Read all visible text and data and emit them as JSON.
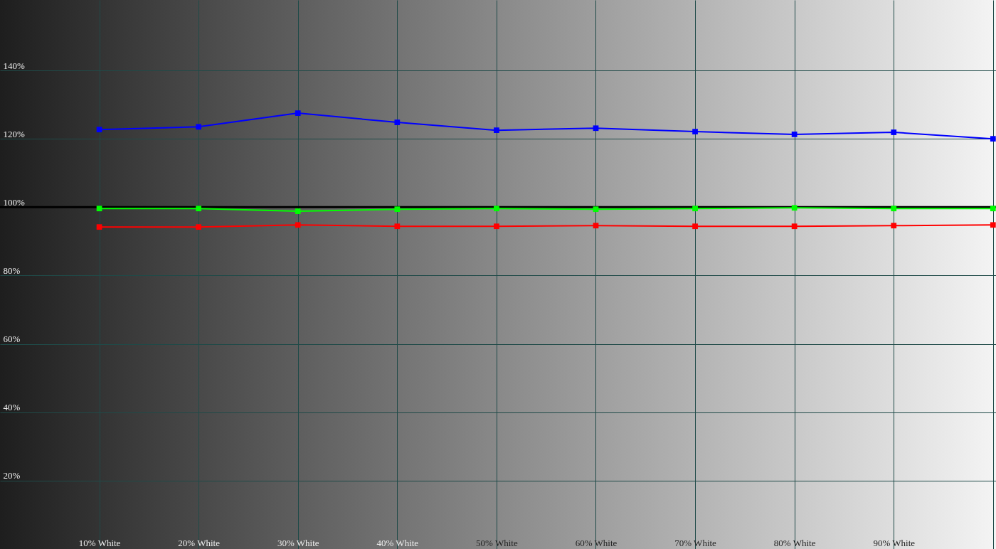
{
  "chart_data": {
    "type": "line",
    "x": [
      10,
      20,
      30,
      40,
      50,
      60,
      70,
      80,
      90,
      100
    ],
    "series": [
      {
        "color": "#0000ff",
        "values": [
          122.7,
          123.5,
          127.5,
          124.8,
          122.5,
          123.1,
          122.1,
          121.3,
          121.9,
          120.0
        ]
      },
      {
        "color": "#00ff00",
        "values": [
          99.6,
          99.6,
          98.8,
          99.4,
          99.6,
          99.4,
          99.6,
          99.8,
          99.6,
          99.6
        ]
      },
      {
        "color": "#ff0000",
        "values": [
          94.2,
          94.2,
          94.8,
          94.4,
          94.4,
          94.6,
          94.4,
          94.4,
          94.6,
          94.8
        ]
      }
    ],
    "xlim": [
      0,
      100.3
    ],
    "xticks": [
      {
        "value": 10,
        "label": "10% White"
      },
      {
        "value": 20,
        "label": "20% White"
      },
      {
        "value": 30,
        "label": "30% White"
      },
      {
        "value": 40,
        "label": "40% White"
      },
      {
        "value": 50,
        "label": "50% White"
      },
      {
        "value": 60,
        "label": "60% White"
      },
      {
        "value": 70,
        "label": "70% White"
      },
      {
        "value": 80,
        "label": "80% White"
      },
      {
        "value": 90,
        "label": "90% White"
      },
      {
        "value": 100,
        "label": null
      }
    ],
    "ylim": [
      0,
      160.6
    ],
    "yticks": [
      {
        "value": 20,
        "label": "20%"
      },
      {
        "value": 40,
        "label": "40%"
      },
      {
        "value": 60,
        "label": "60%"
      },
      {
        "value": 80,
        "label": "80%"
      },
      {
        "value": 100,
        "label": "100%"
      },
      {
        "value": 120,
        "label": "120%"
      },
      {
        "value": 140,
        "label": "140%"
      }
    ],
    "ref_lines": [
      {
        "axis": "y",
        "value": 100,
        "color": "#000000"
      }
    ],
    "grid": true,
    "marker": "square",
    "line_style": "solid"
  }
}
